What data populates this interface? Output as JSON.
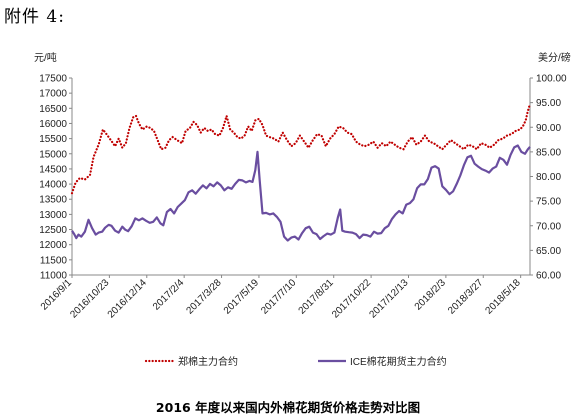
{
  "attachment_label": "附件 4:",
  "caption": "2016 年度以来国内外棉花期货价格走势对比图",
  "chart_data": {
    "type": "line",
    "title": "2016 年度以来国内外棉花期货价格走势对比图",
    "y_left_unit": "元/吨",
    "y_right_unit": "美分/磅",
    "y_left_lim": [
      11000,
      17500
    ],
    "y_left_ticks": [
      "11000",
      "11500",
      "12000",
      "12500",
      "13000",
      "13500",
      "14000",
      "14500",
      "15000",
      "15500",
      "16000",
      "16500",
      "17000",
      "17500"
    ],
    "y_right_lim": [
      60,
      100
    ],
    "y_right_ticks": [
      "60.00",
      "65.00",
      "70.00",
      "75.00",
      "80.00",
      "85.00",
      "90.00",
      "95.00",
      "100.00"
    ],
    "x_date_range": [
      "2016-09-01",
      "2018-05-31"
    ],
    "x_tick_labels": [
      "2016/9/1",
      "2016/10/23",
      "2016/12/14",
      "2017/2/4",
      "2017/3/28",
      "2017/5/19",
      "2017/7/10",
      "2017/8/31",
      "2017/10/22",
      "2017/12/13",
      "2018/2/3",
      "2018/3/27",
      "2018/5/18"
    ],
    "legend_position": "bottom",
    "grid": false,
    "series": [
      {
        "name": "郑棉主力合约",
        "axis": "left",
        "style": "dotted",
        "color": "#c00000",
        "points": [
          [
            "2016-09-01",
            13700
          ],
          [
            "2016-09-06",
            14050
          ],
          [
            "2016-09-12",
            14200
          ],
          [
            "2016-09-19",
            14150
          ],
          [
            "2016-09-26",
            14300
          ],
          [
            "2016-10-01",
            14900
          ],
          [
            "2016-10-08",
            15300
          ],
          [
            "2016-10-14",
            15800
          ],
          [
            "2016-10-19",
            15650
          ],
          [
            "2016-10-25",
            15450
          ],
          [
            "2016-10-31",
            15250
          ],
          [
            "2016-11-05",
            15500
          ],
          [
            "2016-11-10",
            15200
          ],
          [
            "2016-11-15",
            15350
          ],
          [
            "2016-11-20",
            15850
          ],
          [
            "2016-11-25",
            16200
          ],
          [
            "2016-11-29",
            16250
          ],
          [
            "2016-12-03",
            16000
          ],
          [
            "2016-12-08",
            15800
          ],
          [
            "2016-12-14",
            15900
          ],
          [
            "2016-12-19",
            15850
          ],
          [
            "2016-12-24",
            15750
          ],
          [
            "2016-12-29",
            15450
          ],
          [
            "2017-01-03",
            15150
          ],
          [
            "2017-01-09",
            15200
          ],
          [
            "2017-01-14",
            15450
          ],
          [
            "2017-01-19",
            15550
          ],
          [
            "2017-01-25",
            15450
          ],
          [
            "2017-02-01",
            15350
          ],
          [
            "2017-02-06",
            15750
          ],
          [
            "2017-02-12",
            15850
          ],
          [
            "2017-02-17",
            16050
          ],
          [
            "2017-02-22",
            15950
          ],
          [
            "2017-02-27",
            15700
          ],
          [
            "2017-03-04",
            15850
          ],
          [
            "2017-03-09",
            15750
          ],
          [
            "2017-03-14",
            15800
          ],
          [
            "2017-03-19",
            15650
          ],
          [
            "2017-03-25",
            15600
          ],
          [
            "2017-03-30",
            15850
          ],
          [
            "2017-04-04",
            16250
          ],
          [
            "2017-04-09",
            15800
          ],
          [
            "2017-04-14",
            15700
          ],
          [
            "2017-04-19",
            15550
          ],
          [
            "2017-04-24",
            15500
          ],
          [
            "2017-04-29",
            15600
          ],
          [
            "2017-05-04",
            15900
          ],
          [
            "2017-05-09",
            15750
          ],
          [
            "2017-05-14",
            16100
          ],
          [
            "2017-05-19",
            16150
          ],
          [
            "2017-05-24",
            15950
          ],
          [
            "2017-05-29",
            15600
          ],
          [
            "2017-06-03",
            15550
          ],
          [
            "2017-06-09",
            15500
          ],
          [
            "2017-06-15",
            15400
          ],
          [
            "2017-06-21",
            15700
          ],
          [
            "2017-06-27",
            15450
          ],
          [
            "2017-07-03",
            15250
          ],
          [
            "2017-07-09",
            15350
          ],
          [
            "2017-07-15",
            15600
          ],
          [
            "2017-07-21",
            15400
          ],
          [
            "2017-07-27",
            15200
          ],
          [
            "2017-08-02",
            15450
          ],
          [
            "2017-08-08",
            15650
          ],
          [
            "2017-08-14",
            15600
          ],
          [
            "2017-08-20",
            15250
          ],
          [
            "2017-08-26",
            15500
          ],
          [
            "2017-09-01",
            15650
          ],
          [
            "2017-09-07",
            15900
          ],
          [
            "2017-09-13",
            15850
          ],
          [
            "2017-09-19",
            15700
          ],
          [
            "2017-09-25",
            15650
          ],
          [
            "2017-10-01",
            15400
          ],
          [
            "2017-10-07",
            15300
          ],
          [
            "2017-10-13",
            15250
          ],
          [
            "2017-10-19",
            15300
          ],
          [
            "2017-10-25",
            15400
          ],
          [
            "2017-10-31",
            15200
          ],
          [
            "2017-11-06",
            15350
          ],
          [
            "2017-11-12",
            15250
          ],
          [
            "2017-11-18",
            15400
          ],
          [
            "2017-11-24",
            15300
          ],
          [
            "2017-11-30",
            15200
          ],
          [
            "2017-12-06",
            15150
          ],
          [
            "2017-12-12",
            15400
          ],
          [
            "2017-12-18",
            15550
          ],
          [
            "2017-12-24",
            15300
          ],
          [
            "2017-12-30",
            15400
          ],
          [
            "2018-01-05",
            15600
          ],
          [
            "2018-01-11",
            15400
          ],
          [
            "2018-01-17",
            15350
          ],
          [
            "2018-01-23",
            15250
          ],
          [
            "2018-01-29",
            15150
          ],
          [
            "2018-02-04",
            15300
          ],
          [
            "2018-02-10",
            15450
          ],
          [
            "2018-02-16",
            15350
          ],
          [
            "2018-02-22",
            15250
          ],
          [
            "2018-02-28",
            15150
          ],
          [
            "2018-03-06",
            15300
          ],
          [
            "2018-03-12",
            15250
          ],
          [
            "2018-03-18",
            15150
          ],
          [
            "2018-03-24",
            15350
          ],
          [
            "2018-03-30",
            15300
          ],
          [
            "2018-04-05",
            15200
          ],
          [
            "2018-04-11",
            15300
          ],
          [
            "2018-04-17",
            15450
          ],
          [
            "2018-04-23",
            15500
          ],
          [
            "2018-04-29",
            15600
          ],
          [
            "2018-05-05",
            15650
          ],
          [
            "2018-05-11",
            15750
          ],
          [
            "2018-05-17",
            15800
          ],
          [
            "2018-05-21",
            15900
          ],
          [
            "2018-05-25",
            16100
          ],
          [
            "2018-05-28",
            16400
          ],
          [
            "2018-05-31",
            16650
          ]
        ]
      },
      {
        "name": "ICE棉花期货主力合约",
        "axis": "right",
        "style": "solid",
        "color": "#6a4ea0",
        "points": [
          [
            "2016-09-01",
            69.0
          ],
          [
            "2016-09-04",
            68.3
          ],
          [
            "2016-09-07",
            67.5
          ],
          [
            "2016-09-10",
            68.2
          ],
          [
            "2016-09-14",
            67.8
          ],
          [
            "2016-09-19",
            68.8
          ],
          [
            "2016-09-24",
            71.2
          ],
          [
            "2016-09-29",
            69.5
          ],
          [
            "2016-10-04",
            68.2
          ],
          [
            "2016-10-08",
            68.6
          ],
          [
            "2016-10-13",
            68.8
          ],
          [
            "2016-10-17",
            69.6
          ],
          [
            "2016-10-22",
            70.2
          ],
          [
            "2016-10-26",
            70.0
          ],
          [
            "2016-10-31",
            69.0
          ],
          [
            "2016-11-05",
            68.6
          ],
          [
            "2016-11-10",
            69.8
          ],
          [
            "2016-11-14",
            69.2
          ],
          [
            "2016-11-18",
            68.9
          ],
          [
            "2016-11-23",
            69.9
          ],
          [
            "2016-11-28",
            71.5
          ],
          [
            "2016-12-03",
            71.1
          ],
          [
            "2016-12-08",
            71.5
          ],
          [
            "2016-12-13",
            71.0
          ],
          [
            "2016-12-18",
            70.6
          ],
          [
            "2016-12-23",
            70.8
          ],
          [
            "2016-12-28",
            71.7
          ],
          [
            "2017-01-02",
            70.5
          ],
          [
            "2017-01-06",
            70.1
          ],
          [
            "2017-01-11",
            72.8
          ],
          [
            "2017-01-16",
            73.4
          ],
          [
            "2017-01-21",
            72.5
          ],
          [
            "2017-01-26",
            73.8
          ],
          [
            "2017-01-31",
            74.5
          ],
          [
            "2017-02-05",
            75.2
          ],
          [
            "2017-02-10",
            76.8
          ],
          [
            "2017-02-15",
            77.2
          ],
          [
            "2017-02-20",
            76.5
          ],
          [
            "2017-02-25",
            77.4
          ],
          [
            "2017-03-02",
            78.2
          ],
          [
            "2017-03-07",
            77.6
          ],
          [
            "2017-03-12",
            78.5
          ],
          [
            "2017-03-17",
            78.0
          ],
          [
            "2017-03-22",
            78.8
          ],
          [
            "2017-03-27",
            78.2
          ],
          [
            "2017-04-01",
            77.2
          ],
          [
            "2017-04-06",
            77.8
          ],
          [
            "2017-04-11",
            77.5
          ],
          [
            "2017-04-16",
            78.5
          ],
          [
            "2017-04-21",
            79.3
          ],
          [
            "2017-04-26",
            79.2
          ],
          [
            "2017-05-01",
            78.8
          ],
          [
            "2017-05-06",
            79.1
          ],
          [
            "2017-05-10",
            78.9
          ],
          [
            "2017-05-14",
            81.3
          ],
          [
            "2017-05-17",
            85.0
          ],
          [
            "2017-05-20",
            79.2
          ],
          [
            "2017-05-24",
            72.5
          ],
          [
            "2017-05-29",
            72.6
          ],
          [
            "2017-06-03",
            72.3
          ],
          [
            "2017-06-08",
            72.5
          ],
          [
            "2017-06-13",
            71.8
          ],
          [
            "2017-06-18",
            70.8
          ],
          [
            "2017-06-23",
            67.8
          ],
          [
            "2017-06-28",
            67.0
          ],
          [
            "2017-07-03",
            67.6
          ],
          [
            "2017-07-08",
            67.8
          ],
          [
            "2017-07-13",
            67.2
          ],
          [
            "2017-07-18",
            68.5
          ],
          [
            "2017-07-23",
            69.5
          ],
          [
            "2017-07-28",
            69.8
          ],
          [
            "2017-08-02",
            68.6
          ],
          [
            "2017-08-07",
            68.3
          ],
          [
            "2017-08-12",
            67.3
          ],
          [
            "2017-08-17",
            67.9
          ],
          [
            "2017-08-22",
            68.4
          ],
          [
            "2017-08-27",
            68.2
          ],
          [
            "2017-09-01",
            68.6
          ],
          [
            "2017-09-06",
            71.8
          ],
          [
            "2017-09-09",
            73.3
          ],
          [
            "2017-09-12",
            69.0
          ],
          [
            "2017-09-16",
            68.8
          ],
          [
            "2017-09-21",
            68.7
          ],
          [
            "2017-09-26",
            68.6
          ],
          [
            "2017-10-01",
            68.3
          ],
          [
            "2017-10-06",
            67.5
          ],
          [
            "2017-10-11",
            68.2
          ],
          [
            "2017-10-16",
            68.1
          ],
          [
            "2017-10-21",
            67.8
          ],
          [
            "2017-10-26",
            68.8
          ],
          [
            "2017-10-31",
            68.4
          ],
          [
            "2017-11-05",
            68.5
          ],
          [
            "2017-11-10",
            69.5
          ],
          [
            "2017-11-15",
            70.0
          ],
          [
            "2017-11-20",
            71.4
          ],
          [
            "2017-11-25",
            72.3
          ],
          [
            "2017-11-30",
            73.0
          ],
          [
            "2017-12-05",
            72.5
          ],
          [
            "2017-12-10",
            74.3
          ],
          [
            "2017-12-15",
            74.6
          ],
          [
            "2017-12-20",
            75.4
          ],
          [
            "2017-12-25",
            77.6
          ],
          [
            "2017-12-30",
            78.4
          ],
          [
            "2018-01-04",
            78.4
          ],
          [
            "2018-01-09",
            79.5
          ],
          [
            "2018-01-14",
            81.8
          ],
          [
            "2018-01-19",
            82.1
          ],
          [
            "2018-01-24",
            81.6
          ],
          [
            "2018-01-29",
            78.0
          ],
          [
            "2018-02-03",
            77.3
          ],
          [
            "2018-02-08",
            76.4
          ],
          [
            "2018-02-13",
            77.0
          ],
          [
            "2018-02-18",
            78.5
          ],
          [
            "2018-02-23",
            80.2
          ],
          [
            "2018-02-28",
            82.3
          ],
          [
            "2018-03-05",
            83.9
          ],
          [
            "2018-03-10",
            84.2
          ],
          [
            "2018-03-15",
            82.6
          ],
          [
            "2018-03-20",
            82.0
          ],
          [
            "2018-03-25",
            81.5
          ],
          [
            "2018-03-30",
            81.2
          ],
          [
            "2018-04-04",
            80.8
          ],
          [
            "2018-04-09",
            81.6
          ],
          [
            "2018-04-14",
            82.0
          ],
          [
            "2018-04-19",
            83.8
          ],
          [
            "2018-04-24",
            83.4
          ],
          [
            "2018-04-29",
            82.4
          ],
          [
            "2018-05-04",
            84.4
          ],
          [
            "2018-05-09",
            85.9
          ],
          [
            "2018-05-14",
            86.3
          ],
          [
            "2018-05-19",
            85.0
          ],
          [
            "2018-05-24",
            84.6
          ],
          [
            "2018-05-28",
            85.5
          ],
          [
            "2018-05-31",
            86.0
          ]
        ]
      }
    ]
  }
}
